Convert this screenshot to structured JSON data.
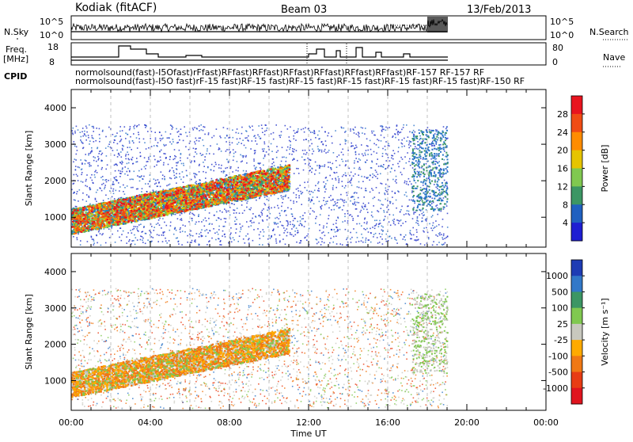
{
  "header": {
    "station": "Kodiak (fitACF)",
    "beam": "Beam 03",
    "date": "13/Feb/2013"
  },
  "summary_panels": {
    "nsky_label": "N.Sky",
    "nsky_ticks": [
      "10^5",
      "10^0"
    ],
    "nsearch_label": "N.Search",
    "nsearch_ticks": [
      "10^5",
      "10^0"
    ],
    "freq_label_line1": "Freq.",
    "freq_label_line2": "[MHz]",
    "freq_ticks": [
      "18",
      "8"
    ],
    "nave_label": "Nave",
    "nave_ticks": [
      "80",
      "0"
    ],
    "cpid_label": "CPID",
    "cpid_text_row1": "normolsound(fast)-I5Ofast)rFfast)RFfast)RFfast)RFfast)RFfast)RFfast)RFfast)RF-157 RF-157 RF",
    "cpid_text_row2": "normolsound(fast)-I5O fast)rF-15 fast)RF-15 fast)RF-15 fast)RF-15 fast)RF-15 fast)RF-15 fast)RF-150 RF"
  },
  "chart_data": [
    {
      "type": "heatmap",
      "title": "",
      "ylabel": "Slant Range [km]",
      "xlabel": "",
      "x_range_hours": [
        0,
        24
      ],
      "ylim": [
        180,
        4500
      ],
      "yticks": [
        "1000",
        "2000",
        "3000",
        "4000"
      ],
      "colorbar_label": "Power [dB]",
      "colorbar_ticks": [
        "28",
        "24",
        "20",
        "16",
        "12",
        "8",
        "4"
      ],
      "colorbar_colors": [
        "#e8141e",
        "#f04c14",
        "#ff8c00",
        "#e6c400",
        "#80c850",
        "#3c9664",
        "#2060c0",
        "#1e1ed2"
      ],
      "data_end_hour": 19.0,
      "data_range_km": [
        250,
        3550
      ]
    },
    {
      "type": "heatmap",
      "title": "",
      "ylabel": "Slant Range [km]",
      "xlabel": "Time UT",
      "x_range_hours": [
        0,
        24
      ],
      "ylim": [
        180,
        4500
      ],
      "yticks": [
        "1000",
        "2000",
        "3000",
        "4000"
      ],
      "xticks": [
        "00:00",
        "04:00",
        "08:00",
        "12:00",
        "16:00",
        "20:00",
        "00:00"
      ],
      "colorbar_label": "Velocity [m s⁻¹]",
      "colorbar_ticks": [
        "1000",
        "500",
        "100",
        "25",
        "-25",
        "-100",
        "-500",
        "-1000"
      ],
      "colorbar_colors": [
        "#1e3cb4",
        "#3278c8",
        "#3c9664",
        "#80c850",
        "#c8c8be",
        "#ffaa00",
        "#f07814",
        "#e83c14",
        "#e0141e"
      ],
      "data_end_hour": 19.0,
      "data_range_km": [
        250,
        3550
      ]
    }
  ]
}
